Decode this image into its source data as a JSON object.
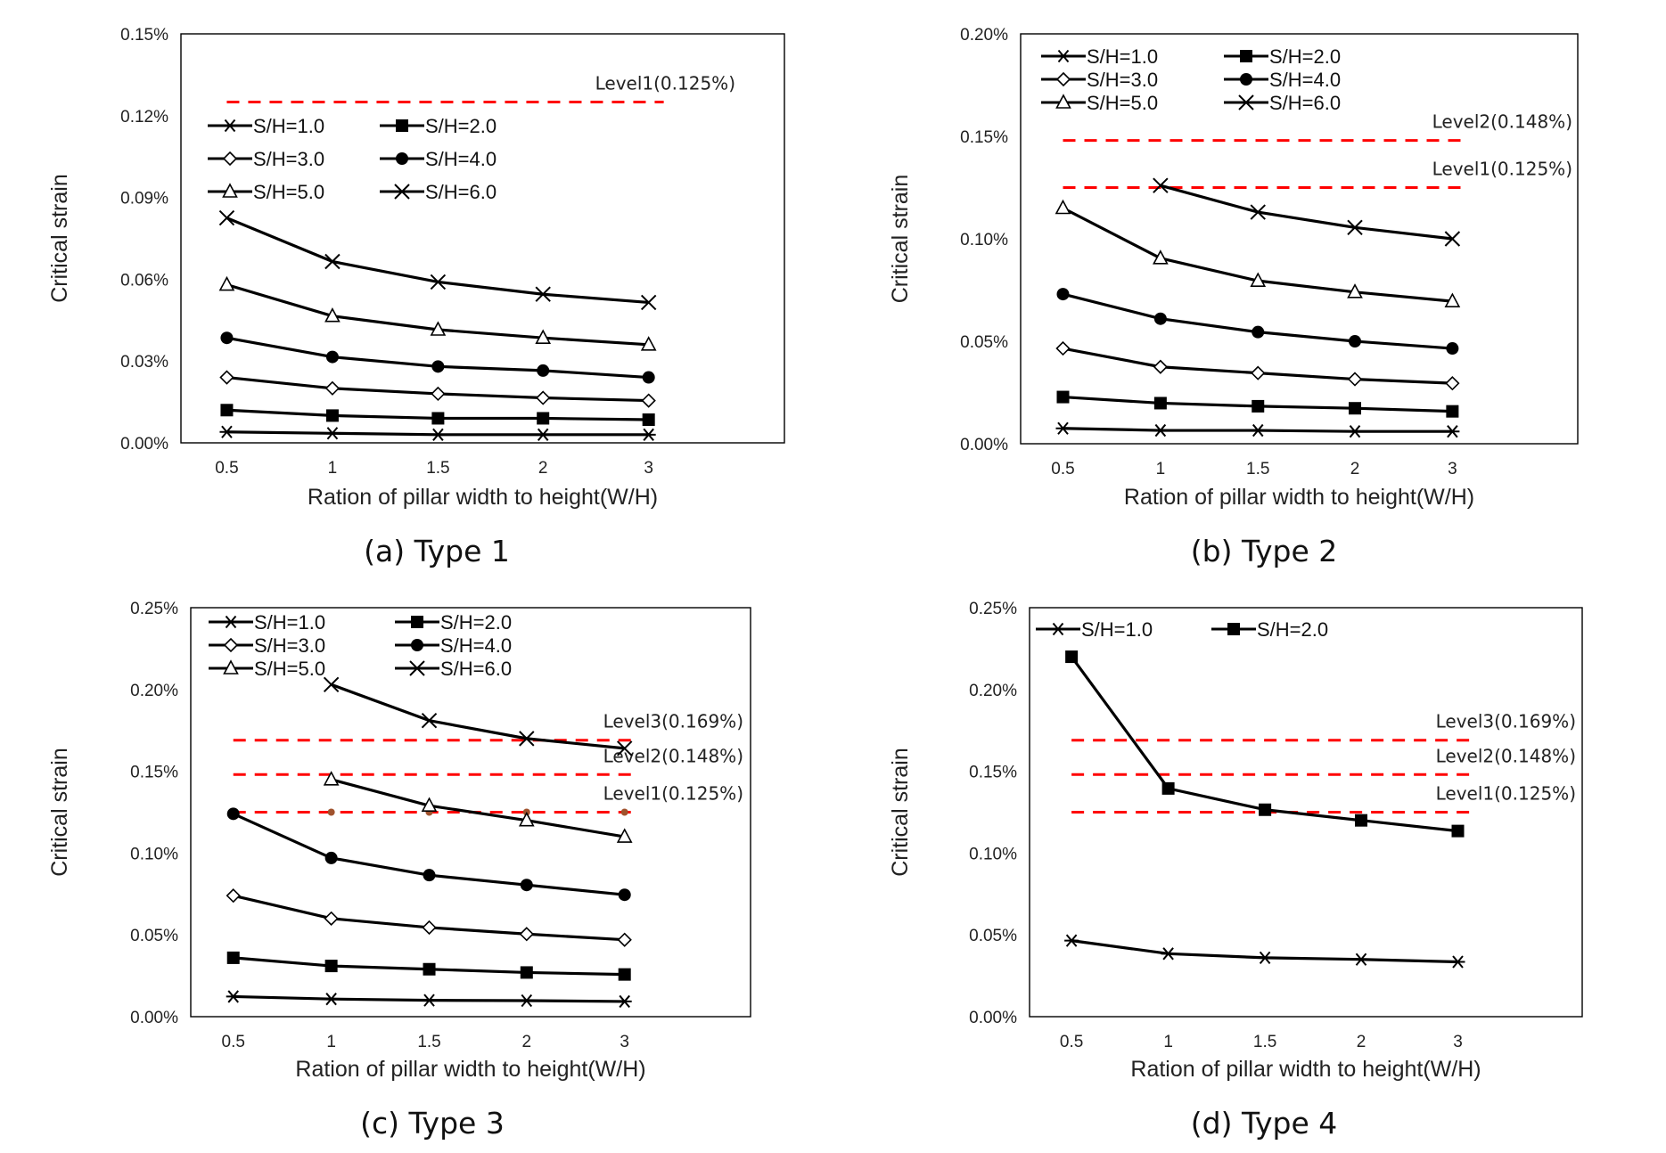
{
  "figure": {
    "panel_count": 4
  },
  "chart_data": [
    {
      "type": "line",
      "caption": "(a) Type 1",
      "xlabel": "Ration of pillar width to height(W/H)",
      "ylabel": "Critical strain",
      "categories": [
        "0.5",
        "1",
        "1.5",
        "2",
        "3"
      ],
      "yticks": [
        "0.00%",
        "0.03%",
        "0.06%",
        "0.09%",
        "0.12%",
        "0.15%"
      ],
      "ylim": [
        0,
        0.15
      ],
      "grid": false,
      "legend": {
        "placement": "upper-left",
        "columns": 2
      },
      "series": [
        {
          "name": "S/H=1.0",
          "marker": "asterisk",
          "values": [
            0.004,
            0.0035,
            0.003,
            0.003,
            0.003
          ]
        },
        {
          "name": "S/H=2.0",
          "marker": "square",
          "values": [
            0.012,
            0.01,
            0.009,
            0.009,
            0.0085
          ]
        },
        {
          "name": "S/H=3.0",
          "marker": "diamond-open",
          "values": [
            0.024,
            0.02,
            0.018,
            0.0165,
            0.0155
          ]
        },
        {
          "name": "S/H=4.0",
          "marker": "circle",
          "values": [
            0.0385,
            0.0315,
            0.028,
            0.0265,
            0.024
          ]
        },
        {
          "name": "S/H=5.0",
          "marker": "triangle-open",
          "values": [
            0.058,
            0.0465,
            0.0415,
            0.0385,
            0.036
          ]
        },
        {
          "name": "S/H=6.0",
          "marker": "x",
          "values": [
            0.0825,
            0.0665,
            0.059,
            0.0545,
            0.0515
          ]
        }
      ],
      "levels": [
        {
          "label": "Level1(0.125%)",
          "value": 0.125
        }
      ]
    },
    {
      "type": "line",
      "caption": "(b) Type 2",
      "xlabel": "Ration of pillar width to height(W/H)",
      "ylabel": "Critical strain",
      "categories": [
        "0.5",
        "1",
        "1.5",
        "2",
        "3"
      ],
      "yticks": [
        "0.00%",
        "0.05%",
        "0.10%",
        "0.15%",
        "0.20%"
      ],
      "ylim": [
        0,
        0.2
      ],
      "grid": false,
      "legend": {
        "placement": "upper-left",
        "columns": 2
      },
      "series": [
        {
          "name": "S/H=1.0",
          "marker": "asterisk",
          "values": [
            0.0075,
            0.0065,
            0.0065,
            0.006,
            0.006
          ]
        },
        {
          "name": "S/H=2.0",
          "marker": "square",
          "values": [
            0.0228,
            0.0198,
            0.0183,
            0.0173,
            0.0158
          ]
        },
        {
          "name": "S/H=3.0",
          "marker": "diamond-open",
          "values": [
            0.0465,
            0.0375,
            0.0345,
            0.0315,
            0.0295
          ]
        },
        {
          "name": "S/H=4.0",
          "marker": "circle",
          "values": [
            0.073,
            0.061,
            0.0545,
            0.05,
            0.0465
          ]
        },
        {
          "name": "S/H=5.0",
          "marker": "triangle-open",
          "values": [
            0.115,
            0.0905,
            0.0795,
            0.074,
            0.0695
          ]
        },
        {
          "name": "S/H=6.0",
          "marker": "x",
          "values": [
            null,
            0.126,
            0.113,
            0.1055,
            0.1
          ]
        }
      ],
      "levels": [
        {
          "label": "Level2(0.148%)",
          "value": 0.148
        },
        {
          "label": "Level1(0.125%)",
          "value": 0.125
        }
      ]
    },
    {
      "type": "line",
      "caption": "(c) Type 3",
      "xlabel": "Ration of pillar width to height(W/H)",
      "ylabel": "Critical strain",
      "categories": [
        "0.5",
        "1",
        "1.5",
        "2",
        "3"
      ],
      "yticks": [
        "0.00%",
        "0.05%",
        "0.10%",
        "0.15%",
        "0.20%",
        "0.25%"
      ],
      "ylim": [
        0,
        0.25
      ],
      "grid": false,
      "legend": {
        "placement": "upper-left",
        "columns": 2
      },
      "series": [
        {
          "name": "S/H=1.0",
          "marker": "asterisk",
          "values": [
            0.0123,
            0.0108,
            0.01,
            0.0098,
            0.0093
          ]
        },
        {
          "name": "S/H=2.0",
          "marker": "square",
          "values": [
            0.036,
            0.031,
            0.029,
            0.027,
            0.0258
          ]
        },
        {
          "name": "S/H=3.0",
          "marker": "diamond-open",
          "values": [
            0.074,
            0.06,
            0.0545,
            0.0505,
            0.047
          ]
        },
        {
          "name": "S/H=4.0",
          "marker": "circle",
          "values": [
            0.124,
            0.097,
            0.0865,
            0.0805,
            0.0745
          ]
        },
        {
          "name": "S/H=5.0",
          "marker": "triangle-open",
          "values": [
            null,
            0.145,
            0.129,
            0.12,
            0.11
          ]
        },
        {
          "name": "S/H=6.0",
          "marker": "x",
          "values": [
            null,
            0.203,
            0.181,
            0.17,
            0.164
          ]
        }
      ],
      "levels": [
        {
          "label": "Level3(0.169%)",
          "value": 0.169
        },
        {
          "label": "Level2(0.148%)",
          "value": 0.148
        },
        {
          "label": "Level1(0.125%)",
          "value": 0.125,
          "dots": true
        }
      ]
    },
    {
      "type": "line",
      "caption": "(d) Type 4",
      "xlabel": "Ration of pillar width to height(W/H)",
      "ylabel": "Critical strain",
      "categories": [
        "0.5",
        "1",
        "1.5",
        "2",
        "3"
      ],
      "yticks": [
        "0.00%",
        "0.05%",
        "0.10%",
        "0.15%",
        "0.20%",
        "0.25%"
      ],
      "ylim": [
        0,
        0.25
      ],
      "grid": false,
      "legend": {
        "placement": "top-left",
        "columns": 2
      },
      "series": [
        {
          "name": "S/H=1.0",
          "marker": "asterisk",
          "values": [
            0.0465,
            0.0385,
            0.036,
            0.035,
            0.0335
          ]
        },
        {
          "name": "S/H=2.0",
          "marker": "square",
          "values": [
            0.22,
            0.1395,
            0.1265,
            0.12,
            0.1135
          ]
        }
      ],
      "levels": [
        {
          "label": "Level3(0.169%)",
          "value": 0.169
        },
        {
          "label": "Level2(0.148%)",
          "value": 0.148
        },
        {
          "label": "Level1(0.125%)",
          "value": 0.125
        }
      ]
    }
  ]
}
